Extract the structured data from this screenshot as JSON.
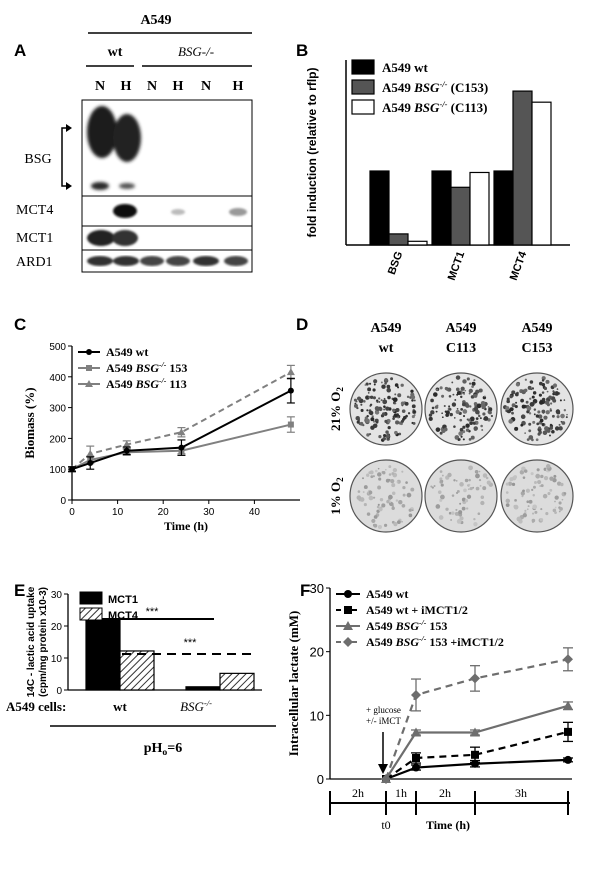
{
  "panel_letters": [
    "A",
    "B",
    "C",
    "D",
    "E",
    "F"
  ],
  "panelA": {
    "cell_line": "A549",
    "groups": [
      "wt",
      "BSG-/-"
    ],
    "lane_labels": [
      "N",
      "H",
      "N",
      "H",
      "N",
      "H"
    ],
    "row_labels": [
      "BSG",
      "MCT4",
      "MCT1",
      "ARD1"
    ]
  },
  "panelD": {
    "columns": [
      [
        "A549",
        "wt"
      ],
      [
        "A549",
        "C113"
      ],
      [
        "A549",
        "C153"
      ]
    ],
    "rows": [
      "21% O2",
      "1% O2"
    ]
  },
  "chart_data": [
    {
      "panel": "B",
      "type": "bar",
      "ylabel": "fold induction (relative to rflp)",
      "ylim": [
        0,
        2.5
      ],
      "categories": [
        "BSG",
        "MCT1",
        "MCT4"
      ],
      "series": [
        {
          "name": "A549 wt",
          "color": "#000000",
          "values": [
            1.0,
            1.0,
            1.0
          ]
        },
        {
          "name": "A549 BSG-/- (C153)",
          "color": "#555555",
          "values": [
            0.15,
            0.78,
            2.08
          ]
        },
        {
          "name": "A549 BSG-/- (C113)",
          "color": "#ffffff",
          "values": [
            0.05,
            0.98,
            1.93
          ]
        }
      ]
    },
    {
      "panel": "C",
      "type": "line",
      "xlabel": "Time (h)",
      "ylabel": "Biomass (%)",
      "xlim": [
        0,
        50
      ],
      "ylim": [
        0,
        500
      ],
      "xticks": [
        0,
        10,
        20,
        30,
        40
      ],
      "yticks": [
        0,
        100,
        200,
        300,
        400,
        500
      ],
      "series": [
        {
          "name": "A549 wt",
          "color": "#000000",
          "dash": false,
          "x": [
            0,
            4,
            12,
            24,
            48
          ],
          "y": [
            100,
            120,
            160,
            170,
            355
          ],
          "err": [
            8,
            20,
            12,
            25,
            40
          ]
        },
        {
          "name": "A549 BSG-/- 153",
          "color": "#808080",
          "dash": false,
          "x": [
            0,
            4,
            12,
            24,
            48
          ],
          "y": [
            100,
            130,
            155,
            160,
            245
          ],
          "err": [
            5,
            12,
            10,
            10,
            25
          ]
        },
        {
          "name": "A549 BSG-/- 113",
          "color": "#808080",
          "dash": true,
          "x": [
            0,
            4,
            12,
            24,
            48
          ],
          "y": [
            100,
            150,
            180,
            220,
            415
          ],
          "err": [
            5,
            25,
            12,
            15,
            22
          ]
        }
      ]
    },
    {
      "panel": "E",
      "type": "bar",
      "ylabel": "14C - lactic acid uptake (cpm/mg protein x10-3)",
      "ylim": [
        0,
        30
      ],
      "yticks": [
        0,
        10,
        20,
        30
      ],
      "row_label": "A549 cells:",
      "categories": [
        "wt",
        "BSG-/-"
      ],
      "series": [
        {
          "name": "MCT1",
          "values": [
            21.7,
            1.0
          ]
        },
        {
          "name": "MCT4",
          "values": [
            12.2,
            5.2
          ]
        }
      ],
      "significance": [
        "***",
        "***"
      ],
      "condition": "pHo=6"
    },
    {
      "panel": "F",
      "type": "line",
      "xlabel": "Time (h)",
      "ylabel": "Intracellular lactate (mM)",
      "ylim": [
        0,
        30
      ],
      "yticks": [
        0,
        10,
        20,
        30
      ],
      "annotation": [
        "+ glucose",
        "+/- iMCT"
      ],
      "timeline": {
        "segments": [
          "2h",
          "1h",
          "2h",
          "3h"
        ],
        "marker": "t0"
      },
      "series": [
        {
          "name": "A549 wt",
          "marker": "circle",
          "color": "#000000",
          "dash": false,
          "x": [
            0,
            1,
            3,
            6
          ],
          "y": [
            0,
            1.8,
            2.4,
            3.0
          ],
          "err": [
            0,
            0.4,
            0.5,
            0.3
          ]
        },
        {
          "name": "A549 wt + iMCT1/2",
          "marker": "square",
          "color": "#000000",
          "dash": true,
          "x": [
            0,
            1,
            3,
            6
          ],
          "y": [
            0,
            3.3,
            3.8,
            7.4
          ],
          "err": [
            0,
            0.8,
            1.2,
            1.5
          ]
        },
        {
          "name": "A549 BSG-/- 153",
          "marker": "triangle",
          "color": "#6e6e6e",
          "dash": false,
          "x": [
            0,
            1,
            3,
            6
          ],
          "y": [
            0,
            7.3,
            7.3,
            11.5
          ],
          "err": [
            0,
            0.4,
            0.4,
            0.6
          ]
        },
        {
          "name": "A549 BSG-/- 153 +iMCT1/2",
          "marker": "diamond",
          "color": "#6e6e6e",
          "dash": true,
          "x": [
            0,
            1,
            3,
            6
          ],
          "y": [
            0,
            13.2,
            15.8,
            18.8
          ],
          "err": [
            0,
            2.5,
            2.0,
            1.8
          ]
        }
      ]
    }
  ]
}
